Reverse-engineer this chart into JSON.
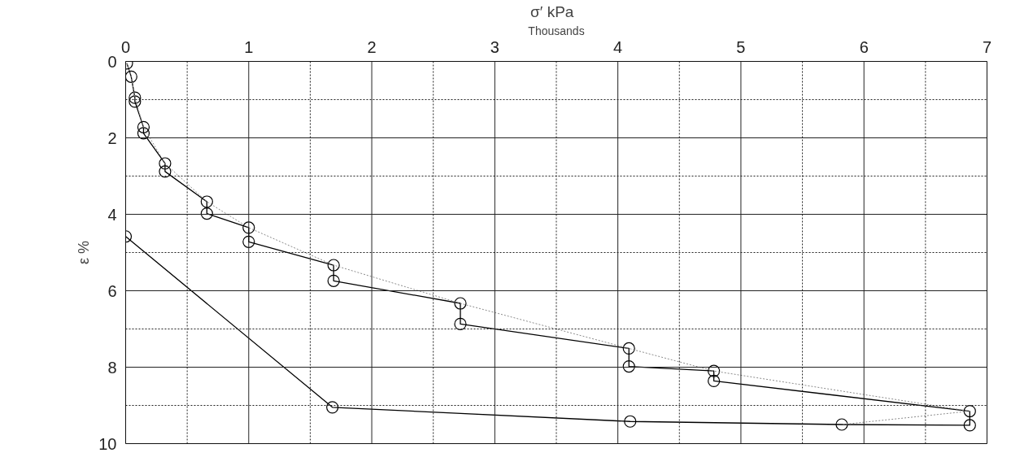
{
  "chart_data": {
    "type": "line",
    "xlabel": "σ′   kPa",
    "ylabel": "ε %",
    "annotations": [
      "Thousands"
    ],
    "series": [
      {
        "color": "#000000",
        "marker": "circle",
        "line_style": "solid",
        "x": [
          0.01,
          0.045,
          0.075,
          0.075,
          0.145,
          0.145,
          0.32,
          0.32,
          0.66,
          0.66,
          1.0,
          1.0,
          1.69,
          1.69,
          2.72,
          2.72,
          4.09,
          4.09,
          4.78,
          4.78,
          6.86,
          6.86,
          5.82,
          4.1,
          1.68,
          0.0
        ],
        "values": [
          0.05,
          0.4,
          0.95,
          1.05,
          1.72,
          1.88,
          2.67,
          2.88,
          3.67,
          3.98,
          4.35,
          4.72,
          5.33,
          5.74,
          6.33,
          6.87,
          7.51,
          7.98,
          8.1,
          8.36,
          9.15,
          9.52,
          9.5,
          9.42,
          9.05,
          4.58
        ]
      },
      {
        "color": "#8c8c8c",
        "marker": "none",
        "line_style": "dotted",
        "x": [
          0.01,
          0.045,
          0.075,
          0.145,
          0.32,
          0.66,
          1.0,
          1.69,
          2.72,
          4.09,
          4.78,
          6.86,
          5.82
        ],
        "values": [
          0.05,
          0.4,
          0.95,
          1.72,
          2.67,
          3.67,
          4.35,
          5.33,
          6.33,
          7.51,
          8.1,
          9.15,
          9.5
        ]
      }
    ],
    "xlim": [
      0,
      7
    ],
    "ylim": [
      10,
      0
    ],
    "xticks": [
      0,
      {
        "value": 0.5,
        "label": null
      },
      1,
      {
        "value": 1.5,
        "label": null
      },
      2,
      {
        "value": 2.5,
        "label": null
      },
      3,
      {
        "value": 3.5,
        "label": null
      },
      4,
      {
        "value": 4.5,
        "label": null
      },
      5,
      {
        "value": 5.5,
        "label": null
      },
      6,
      {
        "value": 6.5,
        "label": null
      },
      7
    ],
    "yticks": [
      0,
      {
        "value": 1,
        "label": null
      },
      2,
      {
        "value": 3,
        "label": null
      },
      4,
      {
        "value": 5,
        "label": null
      },
      6,
      {
        "value": 7,
        "label": null
      },
      8,
      {
        "value": 9,
        "label": null
      },
      10
    ],
    "grid": true
  }
}
